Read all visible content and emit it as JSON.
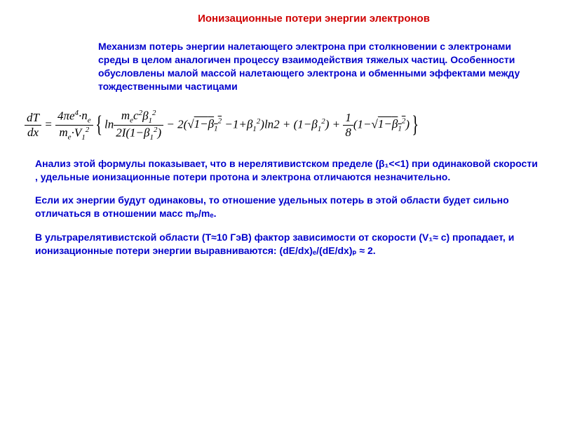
{
  "colors": {
    "title": "#d00000",
    "body_text": "#0000cc",
    "formula": "#000000",
    "background": "#ffffff"
  },
  "typography": {
    "body_font": "Arial",
    "formula_font": "Times New Roman",
    "title_fontsize": 15,
    "body_fontsize": 14,
    "formula_fontsize": 17,
    "title_weight": "bold",
    "body_weight": "bold"
  },
  "title": "Ионизационные потери энергии электронов",
  "intro": "Механизм потерь энергии налетающего электрона при столкновении с электронами среды в целом аналогичен процессу взаимодействия тяжелых частиц. Особенности обусловлены малой массой налетающего электрона и обменными эффектами между тождественными частицами",
  "formula": {
    "latex": "\\frac{dT}{dx} = \\frac{4\\pi e^4 \\cdot n_e}{m_e \\cdot V_1^2} \\left\\{ \\ln\\frac{m_e c^2 \\beta_1^2}{2I(1-\\beta_1^2)} - 2\\left(\\sqrt{1-\\beta_1^2}-1+\\beta_1^2\\right)\\ln 2 + \\left(1-\\beta_1^2\\right) + \\frac{1}{8}\\left(1-\\sqrt{1-\\beta_1^2}\\right) \\right\\}",
    "lhs_num": "dT",
    "lhs_den": "dx",
    "coef_num": "4πe⁴·n_e",
    "coef_den": "m_e·V_1²",
    "ln_arg_num": "m_e c² β_1²",
    "ln_arg_den": "2I(1−β_1²)",
    "term2": "−2(√(1−β_1²)−1+β_1²)ln2",
    "term3": "+(1−β_1²)",
    "term4_coef_num": "1",
    "term4_coef_den": "8",
    "term4_body": "(1−√(1−β_1²))"
  },
  "para1": "Анализ этой формулы показывает, что в нерелятивистском пределе (β₁<<1) при одинаковой скорости , удельные ионизационные потери протона и электрона отличаются незначительно.",
  "para2": "Если их энергии будут одинаковы, то отношение удельных потерь в этой области будет сильно отличаться в отношении масс mₚ/mₑ.",
  "para3": "В ультрарелятивистской области (T≈10 ГэВ) фактор зависимости от скорости (V₁≈ c) пропадает, и ионизационные потери энергии выравниваются: (dE/dx)ₑ/(dE/dx)ₚ ≈ 2."
}
